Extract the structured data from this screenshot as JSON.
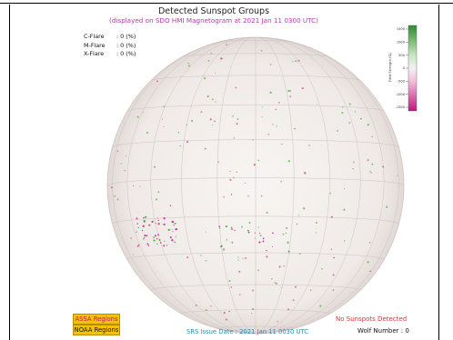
{
  "header": {
    "title": "Detected Sunspot Groups",
    "subtitle": "(displayed on SDO HMI Magnetogram at 2021 Jan 11 0300 UTC)"
  },
  "flares": [
    {
      "label": "C-Flare",
      "value": ": 0 (%)"
    },
    {
      "label": "M-Flare",
      "value": ": 0 (%)"
    },
    {
      "label": "X-Flare",
      "value": ": 0 (%)"
    }
  ],
  "colorbar": {
    "label": "Field Strength (G)",
    "ticks": [
      "1500",
      "1000",
      "500",
      "0",
      "-500",
      "-1000",
      "-1500"
    ],
    "top_color": "#2e8b2e",
    "bottom_color": "#c2187a"
  },
  "legend": {
    "assa": "ASSA Regions",
    "noaa": "NOAA Regions",
    "box_color": "#f4c300"
  },
  "footer": {
    "issue_date": "SRS Issue Date : 2021 Jan 11 0030 UTC",
    "status": "No Sunspots Detected",
    "wolf_number": "Wolf Number : 0"
  }
}
